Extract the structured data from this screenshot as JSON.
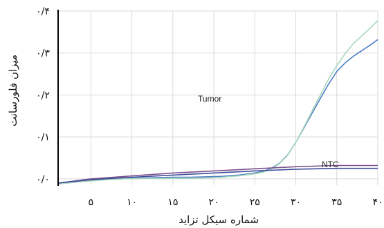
{
  "chart_data": {
    "type": "line",
    "xlabel": "شماره سیکل تزاید",
    "ylabel": "میزان فلورسانت",
    "xlim": [
      1,
      40
    ],
    "ylim": [
      -0.015,
      0.4
    ],
    "x_ticks": [
      5,
      10,
      15,
      20,
      25,
      30,
      35,
      40
    ],
    "x_tick_labels": [
      "۵",
      "۱۰",
      "۱۵",
      "۲۰",
      "۲۵",
      "۳۰",
      "۳۵",
      "۴۰"
    ],
    "y_ticks": [
      0.0,
      0.1,
      0.2,
      0.3,
      0.4
    ],
    "y_tick_labels": [
      "۰/۰",
      "۰/۱",
      "۰/۲",
      "۰/۳",
      "۰/۴"
    ],
    "grid": true,
    "series": [
      {
        "name": "Tumor",
        "color": "#4f7fc4",
        "label_at": [
          19.5,
          0.184
        ],
        "x": [
          1,
          3,
          5,
          7,
          9,
          11,
          13,
          15,
          17,
          19,
          21,
          23,
          25,
          26,
          27,
          28,
          29,
          30,
          31,
          32,
          33,
          34,
          35,
          36,
          37,
          38,
          39,
          40
        ],
        "y": [
          -0.012,
          -0.008,
          -0.004,
          -0.001,
          0.001,
          0.002,
          0.003,
          0.004,
          0.004,
          0.005,
          0.006,
          0.009,
          0.014,
          0.018,
          0.025,
          0.037,
          0.057,
          0.087,
          0.122,
          0.157,
          0.192,
          0.226,
          0.256,
          0.276,
          0.292,
          0.305,
          0.318,
          0.332
        ]
      },
      {
        "name": "",
        "color": "#a8d8bc",
        "x": [
          1,
          3,
          5,
          7,
          9,
          11,
          13,
          15,
          17,
          19,
          21,
          23,
          25,
          26,
          27,
          28,
          29,
          30,
          31,
          32,
          33,
          34,
          35,
          36,
          37,
          38,
          39,
          40
        ],
        "y": [
          -0.012,
          -0.008,
          -0.005,
          -0.002,
          0.0,
          0.001,
          0.001,
          0.001,
          0.001,
          0.002,
          0.004,
          0.007,
          0.012,
          0.016,
          0.023,
          0.036,
          0.056,
          0.087,
          0.124,
          0.162,
          0.2,
          0.238,
          0.27,
          0.298,
          0.322,
          0.34,
          0.358,
          0.377
        ]
      },
      {
        "name": "NTC",
        "color": "#7b4f8c",
        "label_at": [
          34.2,
          0.028
        ],
        "x": [
          1,
          5,
          10,
          15,
          20,
          25,
          30,
          35,
          40
        ],
        "y": [
          -0.01,
          0.0,
          0.007,
          0.014,
          0.019,
          0.024,
          0.029,
          0.032,
          0.032
        ]
      },
      {
        "name": "",
        "color": "#3d4c9a",
        "x": [
          1,
          5,
          10,
          15,
          20,
          25,
          30,
          35,
          40
        ],
        "y": [
          -0.01,
          -0.002,
          0.004,
          0.009,
          0.014,
          0.019,
          0.023,
          0.025,
          0.025
        ]
      }
    ]
  }
}
